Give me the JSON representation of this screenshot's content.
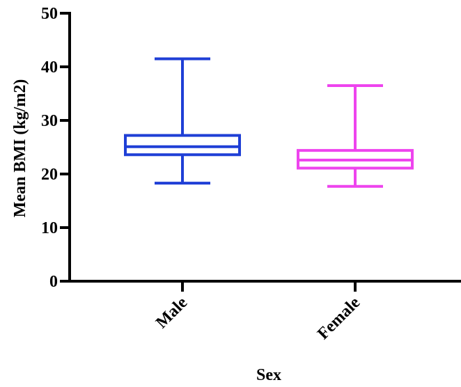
{
  "chart_data": {
    "type": "boxplot",
    "xlabel": "Sex",
    "ylabel": "Mean BMI (kg/m2)",
    "ylim": [
      0,
      50
    ],
    "yticks": [
      0,
      10,
      20,
      30,
      40,
      50
    ],
    "grid": false,
    "legend": "none",
    "categories": [
      "Male",
      "Female"
    ],
    "series": [
      {
        "category": "Male",
        "color": "#1f3fd6",
        "min": 18.3,
        "q1": 23.6,
        "median": 25.1,
        "q3": 27.2,
        "max": 41.5
      },
      {
        "category": "Female",
        "color": "#ee44ee",
        "min": 17.7,
        "q1": 21.1,
        "median": 22.6,
        "q3": 24.4,
        "max": 36.5
      }
    ]
  }
}
